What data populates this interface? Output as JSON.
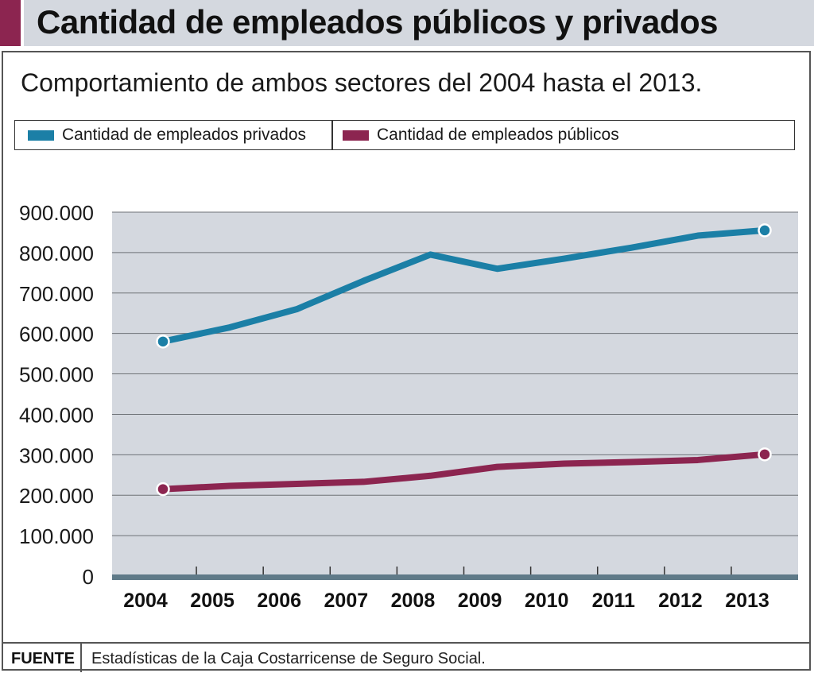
{
  "header": {
    "title": "Cantidad de empleados públicos y privados"
  },
  "subtitle": "Comportamiento de ambos sectores del 2004 hasta el 2013.",
  "colors": {
    "private": "#1b7fa6",
    "public": "#8c2550",
    "plot_bg": "#d4d8df",
    "axis": "#5f7a88",
    "accent": "#8c2550"
  },
  "footer": {
    "label": "FUENTE",
    "text": "Estadísticas de la Caja Costarricense de Seguro Social."
  },
  "chart_data": {
    "type": "line",
    "x": [
      "2004",
      "2005",
      "2006",
      "2007",
      "2008",
      "2009",
      "2010",
      "2011",
      "2012",
      "2013"
    ],
    "series": [
      {
        "name": "Cantidad de empleados privados",
        "values": [
          580000,
          615000,
          660000,
          730000,
          795000,
          760000,
          785000,
          812000,
          842000,
          855000
        ]
      },
      {
        "name": "Cantidad de empleados públicos",
        "values": [
          215000,
          223000,
          228000,
          233000,
          248000,
          270000,
          278000,
          282000,
          287000,
          301000
        ]
      }
    ],
    "ylim": [
      0,
      900000
    ],
    "yticks": [
      0,
      100000,
      200000,
      300000,
      400000,
      500000,
      600000,
      700000,
      800000,
      900000
    ],
    "ytick_labels": [
      "0",
      "100.000",
      "200.000",
      "300.000",
      "400.000",
      "500.000",
      "600.000",
      "700.000",
      "800.000",
      "900.000"
    ],
    "grid": true,
    "legend": "top"
  }
}
